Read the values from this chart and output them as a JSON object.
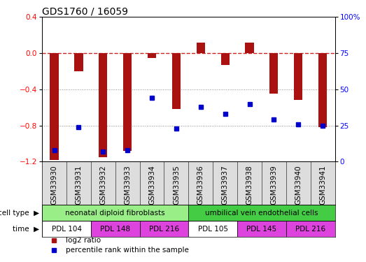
{
  "title": "GDS1760 / 16059",
  "samples": [
    "GSM33930",
    "GSM33931",
    "GSM33932",
    "GSM33933",
    "GSM33934",
    "GSM33935",
    "GSM33936",
    "GSM33937",
    "GSM33938",
    "GSM33939",
    "GSM33940",
    "GSM33941"
  ],
  "log2_ratio": [
    -1.18,
    -0.2,
    -1.15,
    -1.08,
    -0.05,
    -0.62,
    0.12,
    -0.13,
    0.12,
    -0.45,
    -0.52,
    -0.82
  ],
  "percentile_rank": [
    8,
    24,
    7,
    8,
    44,
    23,
    38,
    33,
    40,
    29,
    26,
    25
  ],
  "ylim_left": [
    -1.2,
    0.4
  ],
  "ylim_right": [
    0,
    100
  ],
  "yticks_left": [
    0.4,
    0.0,
    -0.4,
    -0.8,
    -1.2
  ],
  "yticks_right": [
    100,
    75,
    50,
    25,
    0
  ],
  "bar_color": "#aa1111",
  "dot_color": "#0000cc",
  "dashed_line_color": "#cc2222",
  "grid_color": "#000000",
  "cell_type_groups": [
    {
      "label": "neonatal diploid fibroblasts",
      "start": 0,
      "end": 6,
      "color": "#99ee88"
    },
    {
      "label": "umbilical vein endothelial cells",
      "start": 6,
      "end": 12,
      "color": "#44cc44"
    }
  ],
  "time_groups": [
    {
      "label": "PDL 104",
      "start": 0,
      "end": 2,
      "color": "#ffffff"
    },
    {
      "label": "PDL 148",
      "start": 2,
      "end": 4,
      "color": "#dd44dd"
    },
    {
      "label": "PDL 216",
      "start": 4,
      "end": 6,
      "color": "#dd44dd"
    },
    {
      "label": "PDL 105",
      "start": 6,
      "end": 8,
      "color": "#ffffff"
    },
    {
      "label": "PDL 145",
      "start": 8,
      "end": 10,
      "color": "#dd44dd"
    },
    {
      "label": "PDL 216",
      "start": 10,
      "end": 12,
      "color": "#dd44dd"
    }
  ],
  "legend_items": [
    {
      "label": "log2 ratio",
      "color": "#aa1111"
    },
    {
      "label": "percentile rank within the sample",
      "color": "#0000cc"
    }
  ],
  "bg_color": "#ffffff",
  "border_color": "#000000",
  "label_fontsize": 7.5,
  "tick_fontsize": 7.5,
  "title_fontsize": 10,
  "annot_label_fontsize": 7.5
}
